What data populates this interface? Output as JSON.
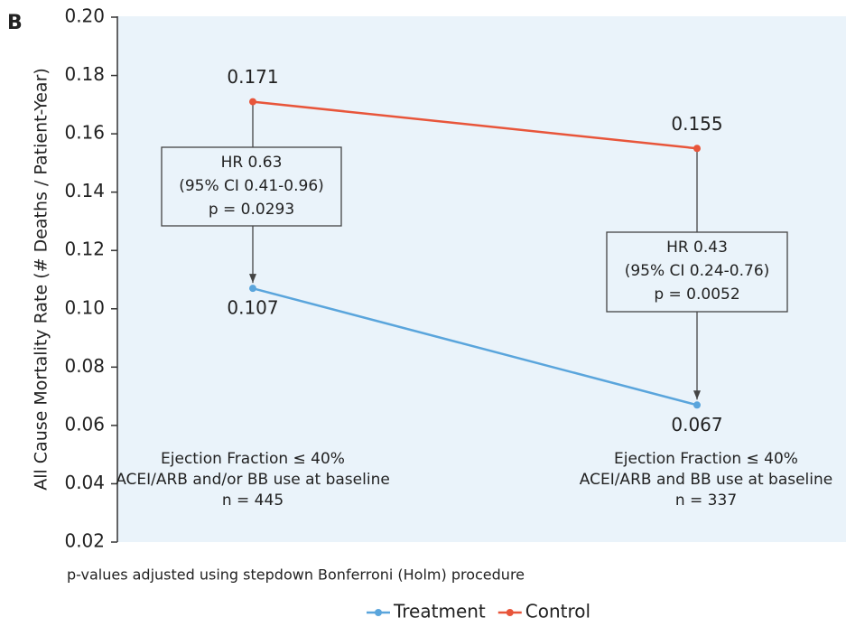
{
  "chart_data": {
    "type": "line",
    "panel_label": "B",
    "y_axis_label": "All Cause Mortality Rate (# Deaths / Patient-Year)",
    "footnote": "p-values adjusted using stepdown Bonferroni (Holm) procedure",
    "categories": [
      [
        "Ejection Fraction ≤ 40%",
        "ACEI/ARB and/or BB use at baseline",
        "n = 445"
      ],
      [
        "Ejection Fraction ≤ 40%",
        "ACEI/ARB and BB use at baseline",
        "n = 337"
      ]
    ],
    "series": [
      {
        "name": "Treatment",
        "color": "#5aa5dc",
        "values": [
          0.107,
          0.067
        ]
      },
      {
        "name": "Control",
        "color": "#e8553a",
        "values": [
          0.171,
          0.155
        ]
      }
    ],
    "annotations": [
      [
        "HR 0.63",
        "(95% CI 0.41-0.96)",
        "p = 0.0293"
      ],
      [
        "HR 0.43",
        "(95% CI 0.24-0.76)",
        "p = 0.0052"
      ]
    ],
    "ylim": [
      0.02,
      0.2
    ],
    "yticks": [
      {
        "value": 0.2,
        "label": "0.20"
      },
      0.18,
      0.16,
      0.14,
      0.12,
      {
        "value": 0.1,
        "label": "0.10"
      },
      0.08,
      0.06,
      0.04,
      0.02
    ],
    "legend": "bottom"
  }
}
